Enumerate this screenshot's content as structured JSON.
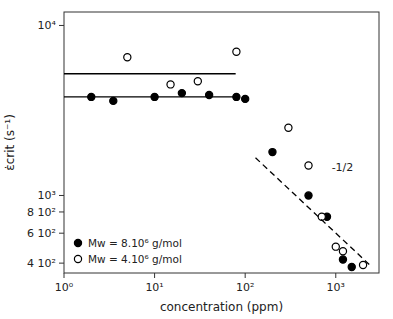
{
  "chart_data": {
    "type": "scatter",
    "xlabel": "concentration (ppm)",
    "ylabel": "ε̇crit (s⁻¹)",
    "log": true,
    "grid": false,
    "legend": "lower left",
    "xlim": [
      1,
      3000
    ],
    "ylim": [
      350,
      12000
    ],
    "xticks": [
      {
        "value": 1,
        "label": "10⁰"
      },
      {
        "value": 10,
        "label": "10¹"
      },
      {
        "value": 100,
        "label": "10²"
      },
      {
        "value": 1000,
        "label": "10³"
      }
    ],
    "yticks": [
      {
        "value": 400,
        "label": "4 10²"
      },
      {
        "value": 600,
        "label": "6 10²"
      },
      {
        "value": 800,
        "label": "8 10²"
      },
      {
        "value": 1000,
        "label": "10³"
      },
      {
        "value": 10000,
        "label": "10⁴"
      }
    ],
    "series": [
      {
        "name": "Mw = 8.10⁶ g/mol",
        "type": "scatter",
        "marker": "filled-circle",
        "color": "#000000",
        "x": [
          2,
          3.5,
          10,
          20,
          40,
          80,
          100,
          200,
          500,
          800,
          1200,
          1500
        ],
        "values": [
          3800,
          3600,
          3800,
          4000,
          3900,
          3800,
          3700,
          1800,
          1000,
          750,
          420,
          380
        ]
      },
      {
        "name": "Mw = 4.10⁶ g/mol",
        "type": "scatter",
        "marker": "open-circle",
        "color": "#000000",
        "x": [
          5,
          15,
          30,
          80,
          300,
          500,
          700,
          1000,
          1200,
          2000
        ],
        "values": [
          6500,
          4500,
          4700,
          7000,
          2500,
          1500,
          750,
          500,
          470,
          390
        ]
      },
      {
        "type": "line",
        "line_style": "solid",
        "color": "#000000",
        "x": [
          1,
          78.53
        ],
        "values": [
          3800,
          3800
        ]
      },
      {
        "type": "line",
        "line_style": "solid",
        "color": "#000000",
        "x": [
          1,
          78.53
        ],
        "values": [
          5200,
          5200
        ]
      },
      {
        "type": "line",
        "line_style": "dashed",
        "color": "#000000",
        "x": [
          130,
          2500
        ],
        "values": [
          1666.41,
          380
        ]
      }
    ],
    "annotations": [
      {
        "text": "-1/2",
        "x": 900,
        "y": 1350
      }
    ]
  }
}
